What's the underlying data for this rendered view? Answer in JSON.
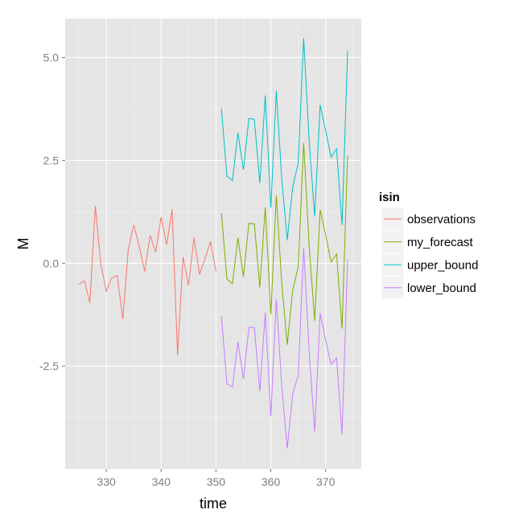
{
  "chart_data": {
    "type": "line",
    "xlabel": "time",
    "ylabel": "M",
    "xlim": [
      322.5,
      376.5
    ],
    "ylim": [
      -5.0,
      5.95
    ],
    "xticks": [
      330,
      340,
      350,
      360,
      370
    ],
    "xtick_labels": [
      "330",
      "340",
      "350",
      "360",
      "370"
    ],
    "yticks": [
      -2.5,
      0,
      2.5,
      5
    ],
    "ytick_labels": [
      "-2.5",
      "0.0",
      "2.5",
      "5.0"
    ],
    "grid": true,
    "legend": {
      "title": "isin",
      "placement": "right"
    },
    "series": [
      {
        "name": "observations",
        "color": "#f8766d",
        "x": [
          325,
          326,
          327,
          328,
          329,
          330,
          331,
          332,
          333,
          334,
          335,
          336,
          337,
          338,
          339,
          340,
          341,
          342,
          343,
          344,
          345,
          346,
          347,
          348,
          349,
          350
        ],
        "y": [
          -0.52,
          -0.42,
          -0.97,
          1.39,
          -0.02,
          -0.68,
          -0.36,
          -0.3,
          -1.36,
          0.33,
          0.93,
          0.42,
          -0.2,
          0.68,
          0.27,
          1.12,
          0.45,
          1.31,
          -2.24,
          0.15,
          -0.53,
          0.62,
          -0.27,
          0.11,
          0.53,
          -0.2
        ]
      },
      {
        "name": "my_forecast",
        "color": "#7cae00",
        "x": [
          351,
          352,
          353,
          354,
          355,
          356,
          357,
          358,
          359,
          360,
          361,
          362,
          363,
          364,
          365,
          366,
          367,
          368,
          369,
          370,
          371,
          372,
          373,
          374
        ],
        "y": [
          1.22,
          -0.38,
          -0.5,
          0.62,
          -0.33,
          0.97,
          0.96,
          -0.59,
          1.36,
          -1.24,
          1.65,
          -0.5,
          -1.98,
          -0.65,
          -0.1,
          2.92,
          0.4,
          -1.4,
          1.3,
          0.69,
          0.03,
          0.22,
          -1.59,
          2.62
        ]
      },
      {
        "name": "upper_bound",
        "color": "#00bfc4",
        "x": [
          351,
          352,
          353,
          354,
          355,
          356,
          357,
          358,
          359,
          360,
          361,
          362,
          363,
          364,
          365,
          366,
          367,
          368,
          369,
          370,
          371,
          372,
          373,
          374
        ],
        "y": [
          3.76,
          2.12,
          2.01,
          3.17,
          2.27,
          3.52,
          3.5,
          1.95,
          4.08,
          1.35,
          4.19,
          2.04,
          0.56,
          1.86,
          2.43,
          5.47,
          2.95,
          1.14,
          3.85,
          3.23,
          2.58,
          2.78,
          0.93,
          5.15
        ]
      },
      {
        "name": "lower_bound",
        "color": "#c77cff",
        "x": [
          351,
          352,
          353,
          354,
          355,
          356,
          357,
          358,
          359,
          360,
          361,
          362,
          363,
          364,
          365,
          366,
          367,
          368,
          369,
          370,
          371,
          372,
          373,
          374
        ],
        "y": [
          -1.28,
          -2.93,
          -3.01,
          -1.91,
          -2.81,
          -1.56,
          -1.56,
          -3.11,
          -1.2,
          -3.72,
          -0.88,
          -2.98,
          -4.5,
          -3.17,
          -2.73,
          0.37,
          -2.16,
          -4.09,
          -1.21,
          -1.87,
          -2.46,
          -2.31,
          -4.16,
          0.09
        ]
      }
    ]
  }
}
